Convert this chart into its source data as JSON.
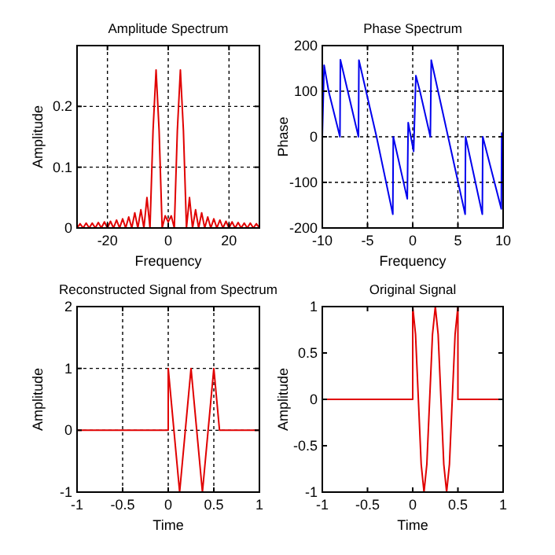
{
  "chart_data": [
    {
      "type": "line",
      "title": "Amplitude Spectrum",
      "xlabel": "Frequency",
      "ylabel": "Amplitude",
      "xlim": [
        -30,
        30
      ],
      "ylim": [
        0,
        0.3
      ],
      "xticks": [
        -20,
        0,
        20
      ],
      "yticks": [
        0,
        0.1,
        0.2
      ],
      "grid": true,
      "series": [
        {
          "color": "#e00000",
          "x": [
            -30,
            -29,
            -28,
            -27,
            -26,
            -25,
            -24,
            -23,
            -22,
            -21,
            -20,
            -19,
            -18,
            -17,
            -16,
            -15,
            -14,
            -13,
            -12,
            -11,
            -10,
            -9,
            -8,
            -7,
            -6,
            -5,
            -4,
            -3,
            -2,
            -1,
            0,
            1,
            2,
            3,
            4,
            5,
            6,
            7,
            8,
            9,
            10,
            11,
            12,
            13,
            14,
            15,
            16,
            17,
            18,
            19,
            20,
            21,
            22,
            23,
            24,
            25,
            26,
            27,
            28,
            29,
            30
          ],
          "values": [
            0,
            0.007,
            0,
            0.008,
            0,
            0.008,
            0,
            0.009,
            0,
            0.01,
            0,
            0.011,
            0,
            0.013,
            0,
            0.015,
            0,
            0.018,
            0,
            0.025,
            0,
            0.03,
            0,
            0.05,
            0,
            0.16,
            0.26,
            0.16,
            0,
            0.02,
            0.01,
            0.02,
            0,
            0.16,
            0.26,
            0.16,
            0,
            0.05,
            0,
            0.03,
            0,
            0.025,
            0,
            0.018,
            0,
            0.015,
            0,
            0.013,
            0,
            0.011,
            0,
            0.01,
            0,
            0.009,
            0,
            0.008,
            0,
            0.008,
            0,
            0.007,
            0
          ]
        }
      ]
    },
    {
      "type": "line",
      "title": "Phase Spectrum",
      "xlabel": "Frequency",
      "ylabel": "Phase",
      "xlim": [
        -10,
        10
      ],
      "ylim": [
        -200,
        200
      ],
      "xticks": [
        -10,
        -5,
        0,
        5,
        10
      ],
      "yticks": [
        -200,
        -100,
        0,
        100,
        200
      ],
      "grid": true,
      "series": [
        {
          "color": "#0000ee",
          "x": [
            -10,
            -9.8,
            -9.3,
            -8.05,
            -8,
            -6,
            -5.95,
            -4,
            -2.2,
            -2.15,
            -0.6,
            -0.5,
            0.1,
            0.35,
            0.8,
            1.95,
            2.05,
            5.8,
            5.85,
            7.7,
            7.75,
            9.8,
            9.85,
            10
          ],
          "values": [
            0,
            157,
            100,
            0,
            169,
            0,
            168,
            0,
            -170,
            0,
            -136,
            31,
            -32,
            134,
            100,
            0,
            168,
            -170,
            0,
            -170,
            0,
            -158,
            8,
            5
          ]
        }
      ]
    },
    {
      "type": "line",
      "title": "Reconstructed Signal from Spectrum",
      "xlabel": "Time",
      "ylabel": "Amplitude",
      "xlim": [
        -1,
        1
      ],
      "ylim": [
        -1,
        2
      ],
      "xticks": [
        -1,
        -0.5,
        0,
        0.5,
        1
      ],
      "yticks": [
        -1,
        0,
        1,
        2
      ],
      "grid": true,
      "series": [
        {
          "color": "#e00000",
          "x": [
            -1,
            0,
            0,
            0.0625,
            0.125,
            0.1875,
            0.25,
            0.3125,
            0.375,
            0.4375,
            0.5,
            0.5625,
            1
          ],
          "values": [
            0,
            0,
            1,
            0,
            -1,
            0,
            1,
            0,
            -1,
            0,
            1,
            0,
            0
          ]
        }
      ]
    },
    {
      "type": "line",
      "title": "Original Signal",
      "xlabel": "Time",
      "ylabel": "Amplitude",
      "xlim": [
        -1,
        1
      ],
      "ylim": [
        -1,
        1
      ],
      "xticks": [
        -1,
        -0.5,
        0,
        0.5,
        1
      ],
      "yticks": [
        -1,
        -0.5,
        0,
        0.5,
        1
      ],
      "grid": false,
      "series": [
        {
          "color": "#e00000",
          "x": [
            -1,
            0,
            0,
            0.03125,
            0.0625,
            0.09375,
            0.125,
            0.15625,
            0.1875,
            0.21875,
            0.25,
            0.28125,
            0.3125,
            0.34375,
            0.375,
            0.40625,
            0.4375,
            0.46875,
            0.5,
            0.5,
            1
          ],
          "values": [
            0,
            0,
            1,
            0.7,
            0,
            -0.7,
            -1,
            -0.7,
            0,
            0.7,
            1,
            0.7,
            0,
            -0.7,
            -1,
            -0.7,
            0,
            0.7,
            1,
            0,
            0
          ]
        }
      ]
    }
  ]
}
